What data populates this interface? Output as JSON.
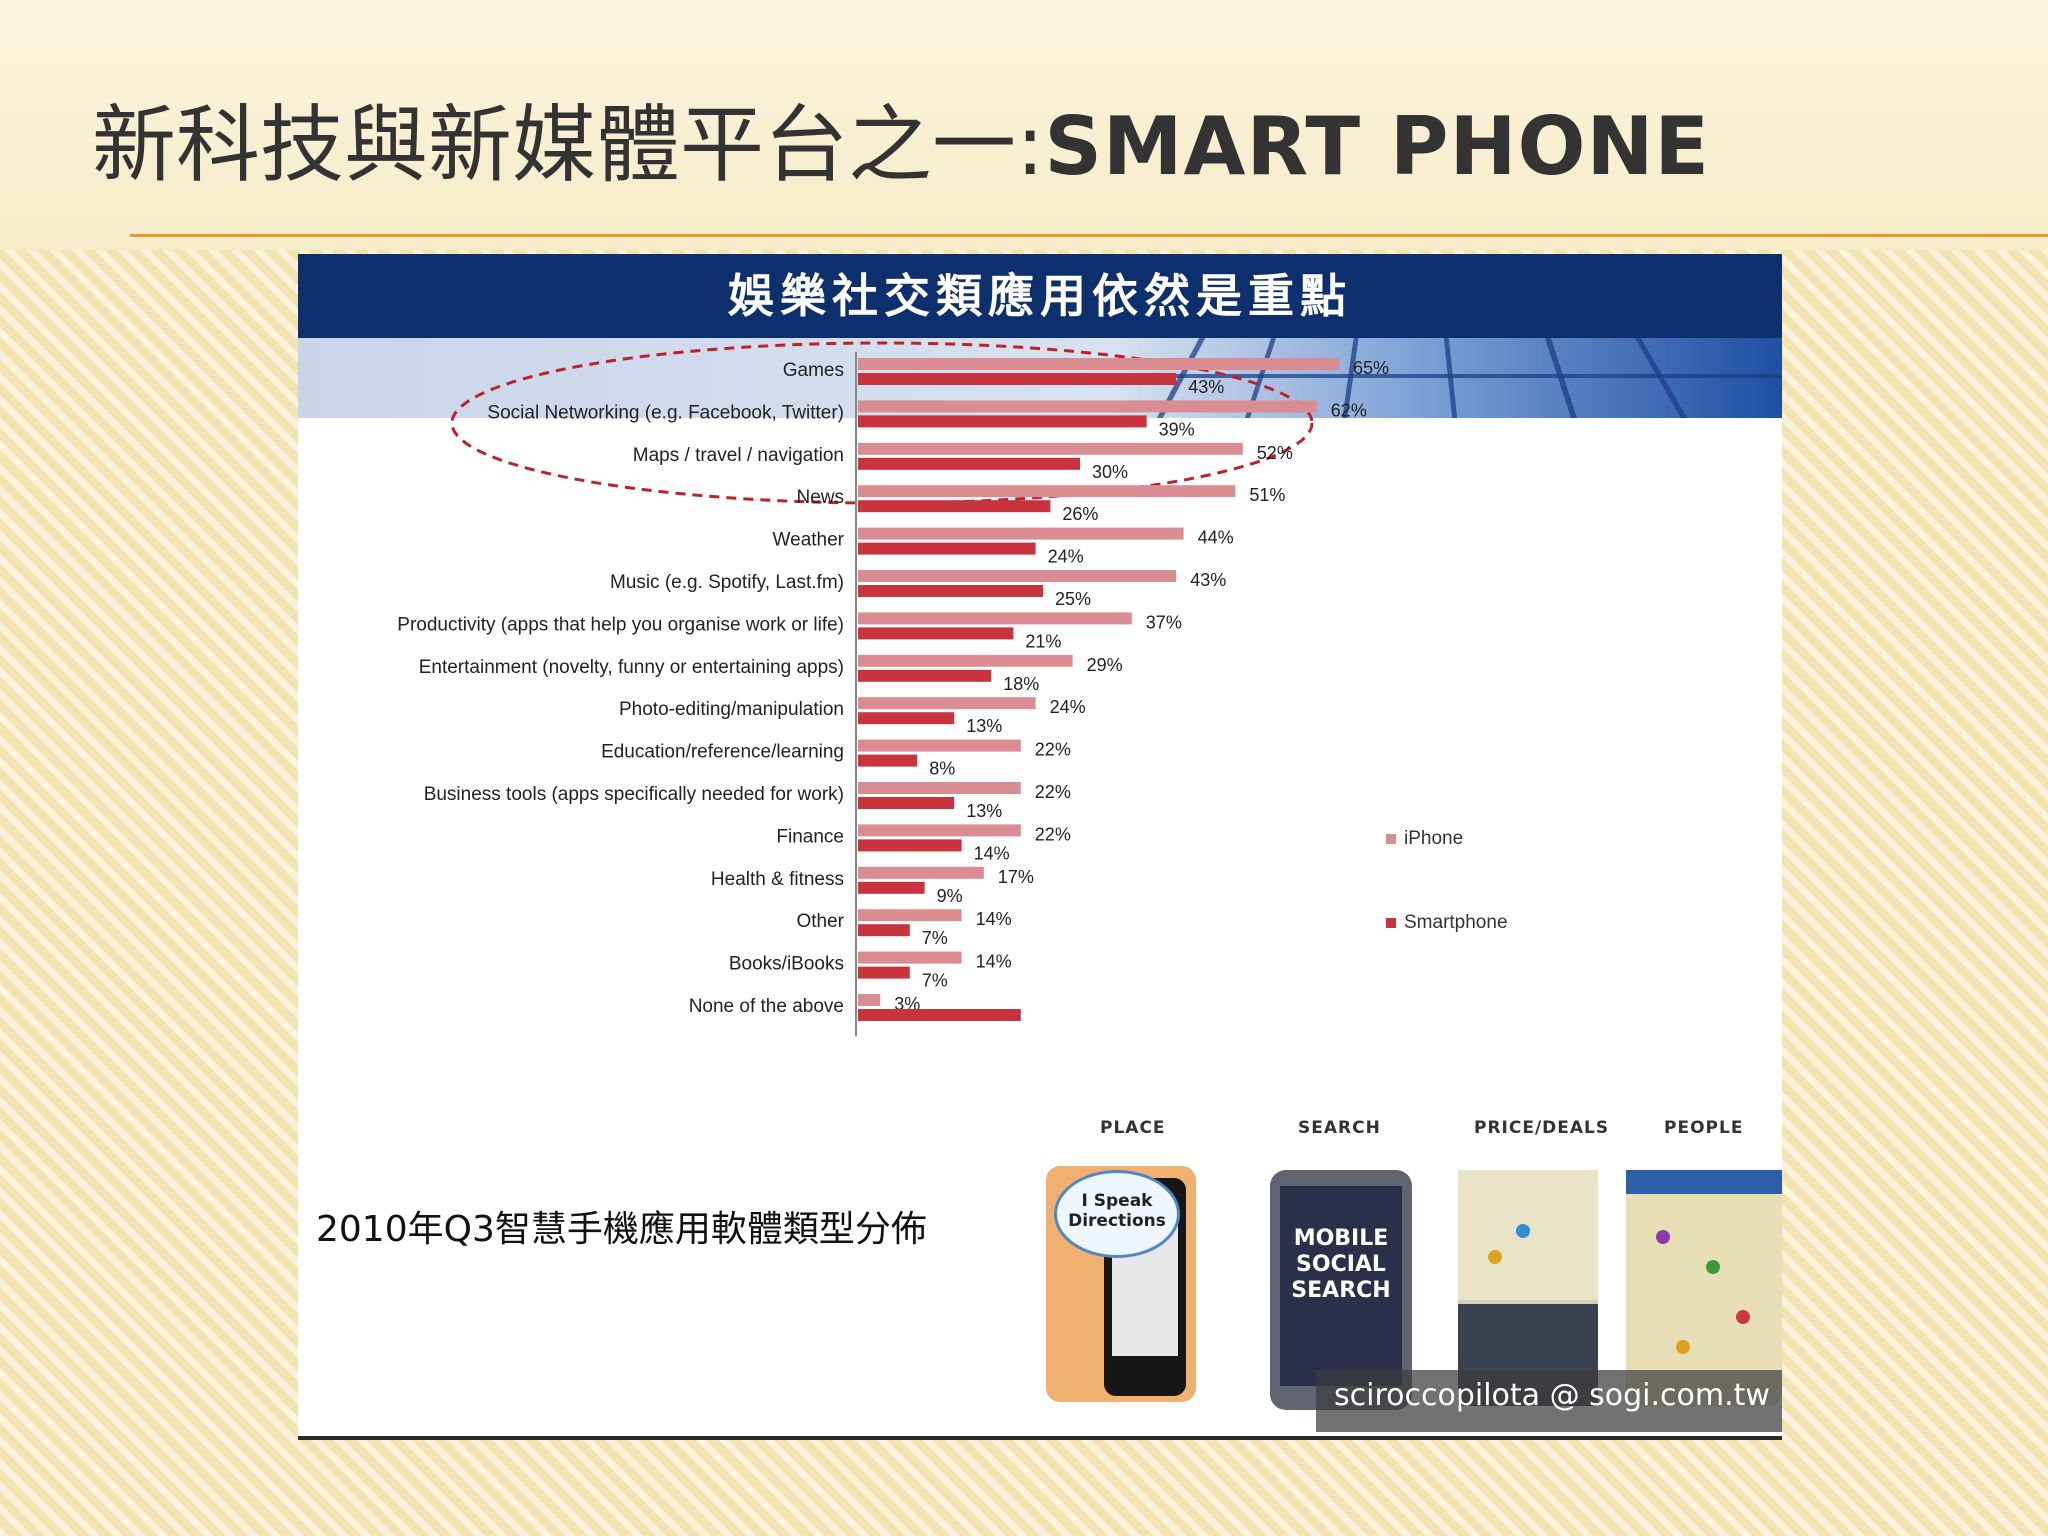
{
  "slide": {
    "title_cjk": "新科技與新媒體平台之一:",
    "title_en": "SMART PHONE"
  },
  "panel": {
    "banner_title": "娛樂社交類應用依然是重點",
    "caption": "2010年Q3智慧手機應用軟體類型分佈",
    "image_labels": [
      "PLACE",
      "SEARCH",
      "PRICE/DEALS",
      "PEOPLE"
    ],
    "bubble_text": "I Speak Directions",
    "search_screen_text": "MOBILE SOCIAL SEARCH",
    "watermark": "sciroccopilota @ sogi.com.tw"
  },
  "colors": {
    "iphone": "#d98d93",
    "smartphone": "#c8333d",
    "banner": "#0e2f6e",
    "ellipse": "#c0202a"
  },
  "chart_data": {
    "type": "bar",
    "orientation": "horizontal",
    "categories": [
      "Games",
      "Social Networking (e.g. Facebook, Twitter)",
      "Maps / travel / navigation",
      "News",
      "Weather",
      "Music (e.g. Spotify, Last.fm)",
      "Productivity (apps that help you organise work or life)",
      "Entertainment (novelty, funny or entertaining apps)",
      "Photo-editing/manipulation",
      "Education/reference/learning",
      "Business tools (apps specifically needed for work)",
      "Finance",
      "Health & fitness",
      "Other",
      "Books/iBooks",
      "None of the above"
    ],
    "series": [
      {
        "name": "iPhone",
        "values": [
          65,
          62,
          52,
          51,
          44,
          43,
          37,
          29,
          24,
          22,
          22,
          22,
          17,
          14,
          14,
          3
        ],
        "labels": [
          "65%",
          "62%",
          "52%",
          "51%",
          "44%",
          "43%",
          "37%",
          "29%",
          "24%",
          "22%",
          "22%",
          "22%",
          "17%",
          "14%",
          "14%",
          "3%"
        ]
      },
      {
        "name": "Smartphone",
        "values": [
          43,
          39,
          30,
          26,
          24,
          25,
          21,
          18,
          13,
          8,
          13,
          14,
          9,
          7,
          7,
          22
        ],
        "labels": [
          "43%",
          "39%",
          "30%",
          "26%",
          "24%",
          "25%",
          "21%",
          "18%",
          "13%",
          "8%",
          "13%",
          "14%",
          "9%",
          "7%",
          "7%",
          ""
        ]
      }
    ],
    "xlim": [
      0,
      100
    ],
    "unit": "%",
    "legend_position": "right",
    "grid": false
  }
}
